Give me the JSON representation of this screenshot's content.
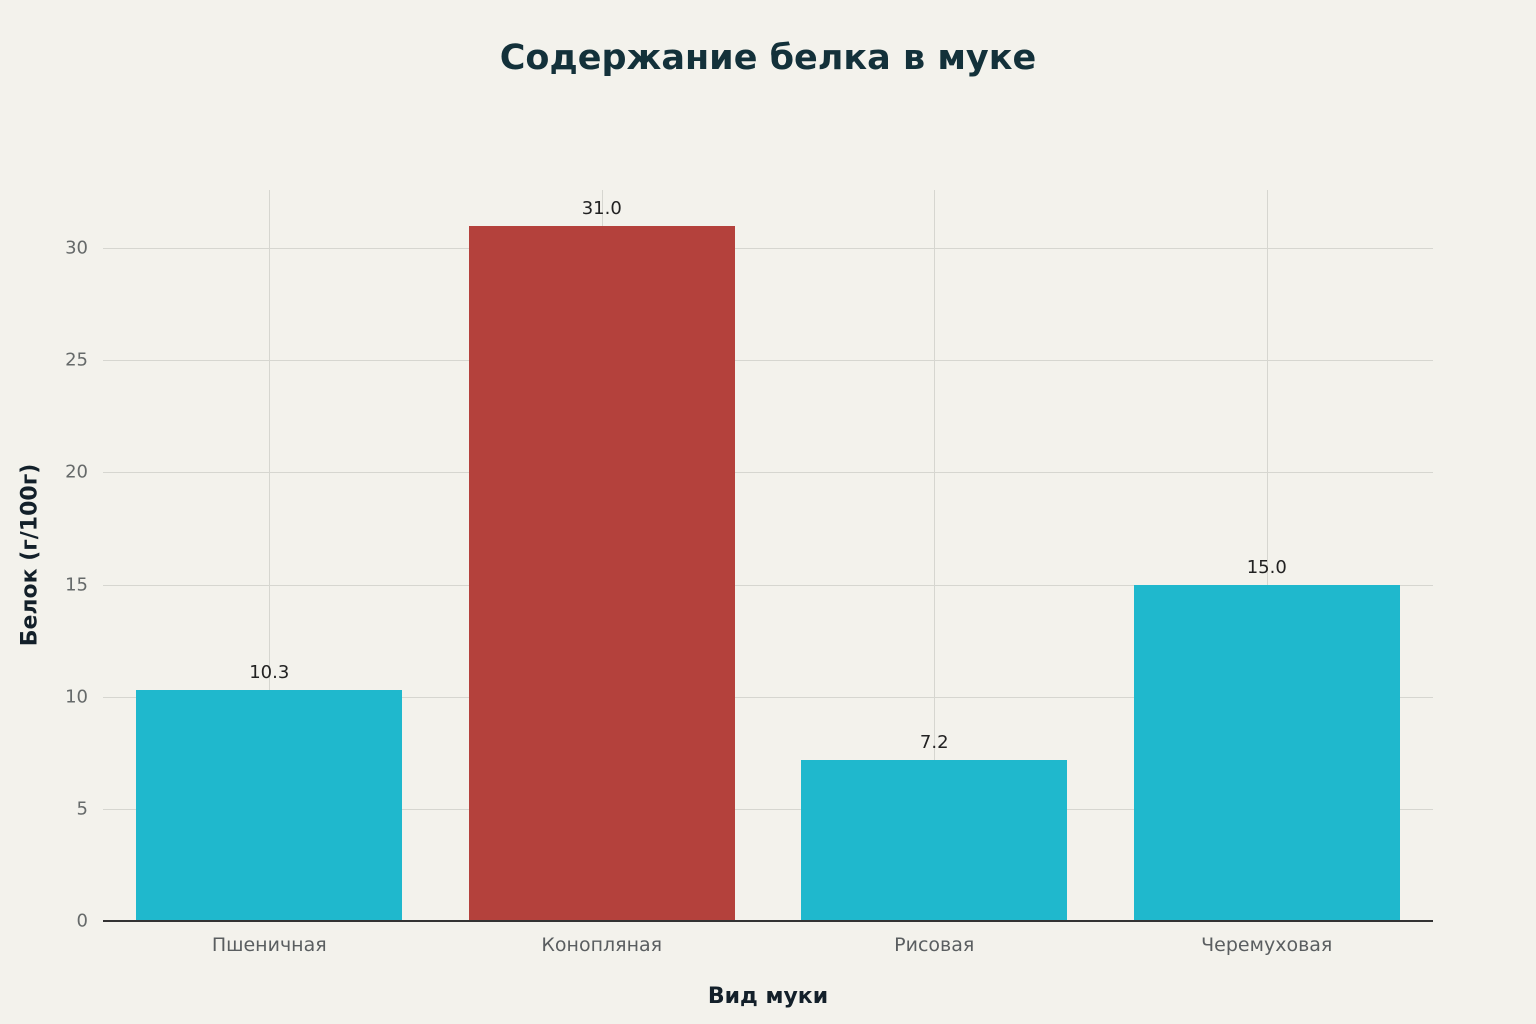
{
  "chart_data": {
    "type": "bar",
    "title": "Содержание белка в муке",
    "xlabel": "Вид муки",
    "ylabel": "Белок (г/100г)",
    "categories": [
      "Пшеничная",
      "Конопляная",
      "Рисовая",
      "Черемуховая"
    ],
    "values": [
      10.3,
      31.0,
      7.2,
      15.0
    ],
    "value_labels": [
      "10.3",
      "31.0",
      "7.2",
      "15.0"
    ],
    "colors": [
      "#1fb8cd",
      "#b4413c",
      "#1fb8cd",
      "#1fb8cd"
    ],
    "ylim": [
      0,
      32.6
    ],
    "yticks": [
      0,
      5,
      10,
      15,
      20,
      25,
      30
    ],
    "grid": true,
    "legend": null
  }
}
